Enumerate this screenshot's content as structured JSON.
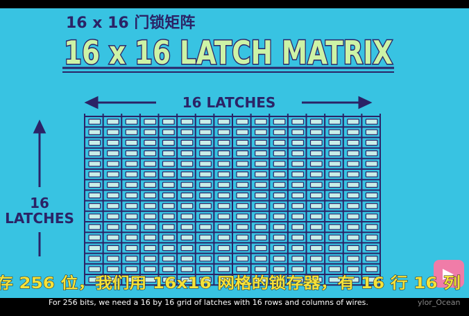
{
  "header": {
    "subtitle": "16 x 16 门锁矩阵",
    "title": "16 x 16 LATCH MATRIX"
  },
  "diagram": {
    "columns_label": "16 LATCHES",
    "rows_label_number": "16",
    "rows_label_text": "LATCHES"
  },
  "captions": {
    "chinese": "存 256 位，我们用 16x16 网格的锁存器，有 16 行 16 列",
    "english": "For 256 bits, we need a 16 by 16 grid of latches with 16 rows and columns of wires.",
    "watermark": "ylor_Ocean"
  }
}
